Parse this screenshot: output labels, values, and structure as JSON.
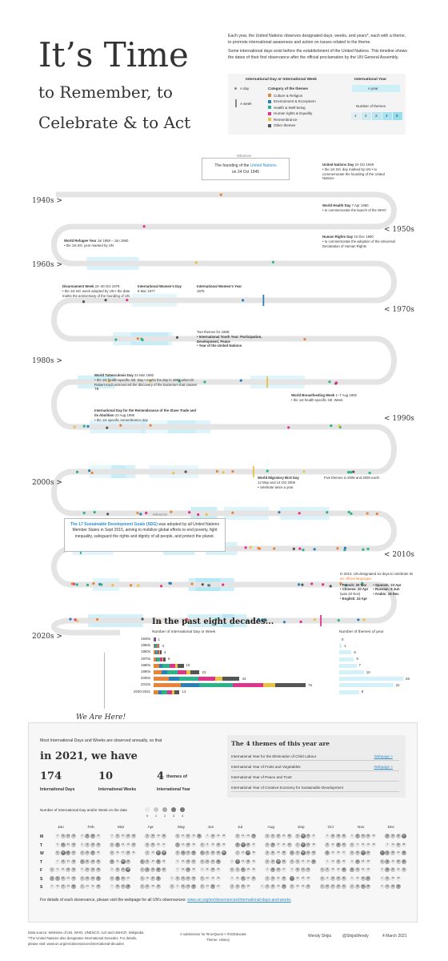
{
  "title": {
    "line1": "It’s Time",
    "line2": "to Remember, to",
    "line3": "Celebrate & to Act"
  },
  "intro": {
    "p1": "Each year, the United Nations observes designated days, weeks, and years*, each with a theme, to promote international awareness and action on issues related to the theme.",
    "p2": "Some international days exist before the establishment of the United Nations. This timeline shows the dates of their first observance after the official proclamation by the UN General Assembly."
  },
  "legend": {
    "day_week_title": "International Day or International Week",
    "a_day": "A day",
    "a_week": "A week",
    "category_title": "Category of the themes",
    "categories": [
      {
        "label": "Culture & Religion",
        "color": "#e8833a"
      },
      {
        "label": "Environment & Ecosystem",
        "color": "#2a7fb8"
      },
      {
        "label": "Health & Well-being",
        "color": "#2ab38a"
      },
      {
        "label": "Human rights & Equality",
        "color": "#e0338a"
      },
      {
        "label": "Remembrance",
        "color": "#e8c341"
      },
      {
        "label": "Other themes",
        "color": "#555555"
      }
    ],
    "year_title": "International Year",
    "a_year": "A year",
    "num_themes": "Number of themes",
    "theme_counts": [
      "1",
      "2",
      "3",
      "4",
      "5"
    ]
  },
  "decades": [
    "1940s >",
    "< 1950s",
    "1960s >",
    "< 1970s",
    "1980s >",
    "< 1990s",
    "2000s >",
    "< 2010s",
    "2020s >"
  ],
  "annotations": {
    "milestone1_tag": "Milestone",
    "milestone1_pre": "The founding of the",
    "milestone1_link": "United Nations",
    "milestone1_date": "on 24 Oct 1945",
    "un_day_title": "United Nations Day",
    "un_day_date": "24 Oct 1948",
    "un_day_notes": "• the 1st Intl. day marked by UN • to commemorate the founding of the United Nations",
    "health_day_title": "World Health Day",
    "health_day_date": "7 Apr 1950",
    "health_day_note": "• to commemorate the launch of the WHO",
    "hr_day_title": "Human Rights Day",
    "hr_day_date": "10 Dec 1950",
    "hr_day_note": "• to commemorate the adoption of the Universal Declaration of Human Rights",
    "refugee_title": "World Refugee Year",
    "refugee_date": "Jul 1959 – Jun 1960",
    "refugee_note": "• the 1st Intl. year marked by UN",
    "disarm_title": "Disarmament Week",
    "disarm_date": "24–30 Oct 1978",
    "disarm_note": "• the 1st Intl. week adopted by UN • the date marks the anniversary of the founding of UN",
    "women_day_title": "International Women’s Day",
    "women_day_date": "8 Mar 1977",
    "women_year_title": "International Women’s Year",
    "women_year_date": "1975",
    "themes85_title": "Two themes for 1985:",
    "themes85_1": "• International Youth Year: Participation, Development, Peace",
    "themes85_2": "• Year of the United Nations",
    "tb_title": "World Tuberculosis Day",
    "tb_date": "24 Mar 1982",
    "tb_note": "• the 1st health-specific Intl. Day • marks the day in 1882 when Dr Robert Koch announced the discovery of the bacterium that causes TB",
    "breast_title": "World Breastfeeding Week",
    "breast_date": "1–7 Aug 1992",
    "breast_note": "• the 1st health-specific Intl. Week",
    "slave_title": "International Day for the Remembrance of the Slave Trade and its Abolition",
    "slave_date": "23 Aug 1998",
    "slave_note": "• the 1st specific remembrance day",
    "bird_title": "World Migratory Bird Day",
    "bird_date": "13 May and 14 Oct 2006",
    "bird_note": "• celebrate twice a year",
    "five_themes": "Five themes in 2008 and 2009 each!",
    "milestone2_tag": "Milestone",
    "milestone2_link": "The 17 Sustainable Development Goals (SDG)",
    "milestone2_text": "was adopted by all United Nations Member States in Sept 2015, aiming to mobilize global efforts to end poverty, fight inequality, safeguard the rights and dignity of all people, and protect the planet.",
    "lang_title": "In 2010, UN designated six days to celebrate its",
    "lang_link": "six official languages",
    "lang_french": "• French: 20 Mar",
    "lang_chinese": "• Chinese: 20 Apr",
    "lang_chinese2": "(was 20 Nov)",
    "lang_english": "• English: 23 Apr",
    "lang_spanish": "• Spanish: 23 Apr",
    "lang_russian": "• Russian: 6 Jun",
    "lang_arabic": "• Arabic: 18 Dec"
  },
  "chart_data": {
    "type": "bar",
    "title": "In the past eight decades...",
    "left_header": "Number of International Day or Week",
    "right_header": "Number of themes of year",
    "categories": [
      "1940s",
      "1950s",
      "1960s",
      "1970s",
      "1980s",
      "1990s",
      "2000s",
      "2010s",
      "2020-2021"
    ],
    "series": [
      {
        "name": "International Day or Week",
        "values": [
          1,
          3,
          4,
          6,
          15,
          23,
          43,
          76,
          13
        ]
      },
      {
        "name": "Themes of year",
        "values": [
          0,
          1,
          5,
          6,
          7,
          10,
          26,
          22,
          8
        ]
      }
    ]
  },
  "here": {
    "label": "We Are Here!",
    "lead": "Most International Days and Weeks are observed annually, so that",
    "year_line": "in 2021, we have",
    "days_num": "174",
    "days_lbl": "International Days",
    "weeks_num": "10",
    "weeks_lbl": "International Weeks",
    "themes_num": "4",
    "themes_of": "themes of",
    "themes_lbl": "International Year",
    "themes_box_title": "The 4 themes of this year are",
    "themes": [
      {
        "label": "International Year for the Elimination of Child Labour",
        "link": "Webpage >"
      },
      {
        "label": "International Year of Fruits and Vegetables",
        "link": "Webpage >"
      },
      {
        "label": "International Year of Peace and Trust",
        "link": ""
      },
      {
        "label": "International Year of Creative Economy for Sustainable Development",
        "link": ""
      }
    ],
    "cal_legend": "Number of International Day and/or Week on the date",
    "cal_legend_vals": [
      "0",
      "1",
      "2",
      "3",
      "4"
    ],
    "months": [
      "Jan",
      "Feb",
      "Mar",
      "Apr",
      "May",
      "Jun",
      "Jul",
      "Aug",
      "Sep",
      "Oct",
      "Nov",
      "Dec"
    ],
    "weekdays": [
      "M",
      "T",
      "W",
      "T",
      "F",
      "S",
      "S"
    ],
    "details_pre": "For details of each observance, please visit the webpage for all UN’s observances:",
    "details_link": "www.un.org/en/observances/international-days-and-weeks"
  },
  "footer": {
    "source": "Data source: Websites of UN, WHO, UNESCO, ILO and UNHCR, Wikipedia",
    "source2": "*The United Nations also designates International Decades. For details,",
    "source3": "please visit: www.un.org/en/observances/international-decades",
    "submission": "A submission for #IronQuest × #VizEducate",
    "theme": "Theme: History",
    "author": "Wendy Shijia",
    "handle": "@ShijiaWendy",
    "date": "4 March 2021"
  }
}
